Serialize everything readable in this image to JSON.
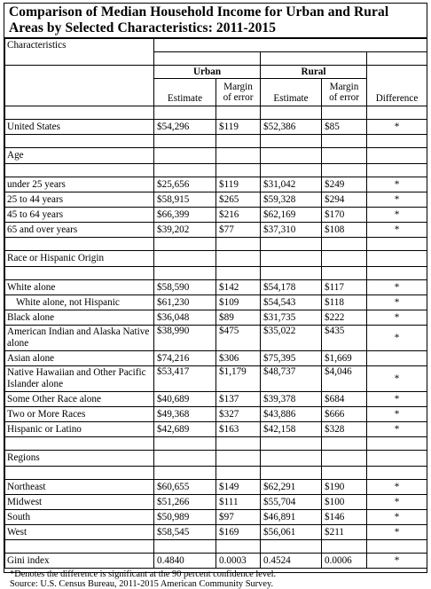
{
  "title": "Comparison of Median Household Income for Urban and Rural Areas by Selected Characteristics: 2011-2015",
  "headers": {
    "characteristics": "Characteristics",
    "urban": "Urban",
    "rural": "Rural",
    "estimate": "Estimate",
    "margin_line1": "Margin",
    "margin_line2": "of error",
    "difference": "Difference"
  },
  "us_row": {
    "label": "United States",
    "u_est": "$54,296",
    "u_moe": "$119",
    "r_est": "$52,386",
    "r_moe": "$85",
    "diff": "*"
  },
  "sections": {
    "age": "Age",
    "race": "Race or Hispanic Origin",
    "regions": "Regions"
  },
  "age_rows": [
    {
      "label": "under 25 years",
      "u_est": "$25,656",
      "u_moe": "$119",
      "r_est": "$31,042",
      "r_moe": "$249",
      "diff": "*"
    },
    {
      "label": "25 to 44 years",
      "u_est": "$58,915",
      "u_moe": "$265",
      "r_est": "$59,328",
      "r_moe": "$294",
      "diff": "*"
    },
    {
      "label": "45 to 64 years",
      "u_est": "$66,399",
      "u_moe": "$216",
      "r_est": "$62,169",
      "r_moe": "$170",
      "diff": "*"
    },
    {
      "label": "65 and over years",
      "u_est": "$39,202",
      "u_moe": "$77",
      "r_est": "$37,310",
      "r_moe": "$108",
      "diff": "*"
    }
  ],
  "race_rows": [
    {
      "label": "White alone",
      "u_est": "$58,590",
      "u_moe": "$142",
      "r_est": "$54,178",
      "r_moe": "$117",
      "diff": "*"
    },
    {
      "label": "White alone, not Hispanic",
      "u_est": "$61,230",
      "u_moe": "$109",
      "r_est": "$54,543",
      "r_moe": "$118",
      "diff": "*"
    },
    {
      "label": "Black alone",
      "u_est": "$36,048",
      "u_moe": "$89",
      "r_est": "$31,735",
      "r_moe": "$222",
      "diff": "*"
    },
    {
      "label": "American Indian and Alaska Native alone",
      "u_est": "$38,990",
      "u_moe": "$475",
      "r_est": "$35,022",
      "r_moe": "$435",
      "diff": "*"
    },
    {
      "label": "Asian alone",
      "u_est": "$74,216",
      "u_moe": "$306",
      "r_est": "$75,395",
      "r_moe": "$1,669",
      "diff": ""
    },
    {
      "label": "Native Hawaiian and Other Pacific Islander alone",
      "u_est": "$53,417",
      "u_moe": "$1,179",
      "r_est": "$48,737",
      "r_moe": "$4,046",
      "diff": "*"
    },
    {
      "label": "Some Other Race alone",
      "u_est": "$40,689",
      "u_moe": "$137",
      "r_est": "$39,378",
      "r_moe": "$684",
      "diff": "*"
    },
    {
      "label": "Two or More Races",
      "u_est": "$49,368",
      "u_moe": "$327",
      "r_est": "$43,886",
      "r_moe": "$666",
      "diff": "*"
    },
    {
      "label": "Hispanic or Latino",
      "u_est": "$42,689",
      "u_moe": "$163",
      "r_est": "$42,158",
      "r_moe": "$328",
      "diff": "*"
    }
  ],
  "region_rows": [
    {
      "label": "Northeast",
      "u_est": "$60,655",
      "u_moe": "$149",
      "r_est": "$62,291",
      "r_moe": "$190",
      "diff": "*"
    },
    {
      "label": "Midwest",
      "u_est": "$51,266",
      "u_moe": "$111",
      "r_est": "$55,704",
      "r_moe": "$100",
      "diff": "*"
    },
    {
      "label": "South",
      "u_est": "$50,989",
      "u_moe": "$97",
      "r_est": "$46,891",
      "r_moe": "$146",
      "diff": "*"
    },
    {
      "label": "West",
      "u_est": "$58,545",
      "u_moe": "$169",
      "r_est": "$56,061",
      "r_moe": "$211",
      "diff": "*"
    }
  ],
  "gini_row": {
    "label": "Gini index",
    "u_est": "0.4840",
    "u_moe": "0.0003",
    "r_est": "0.4524",
    "r_moe": "0.0006",
    "diff": "*"
  },
  "footnotes": {
    "note": "*Denotes the difference is significant at the 90 percent confidence level.",
    "source": "Source: U.S. Census Bureau, 2011-2015 American Community Survey."
  }
}
